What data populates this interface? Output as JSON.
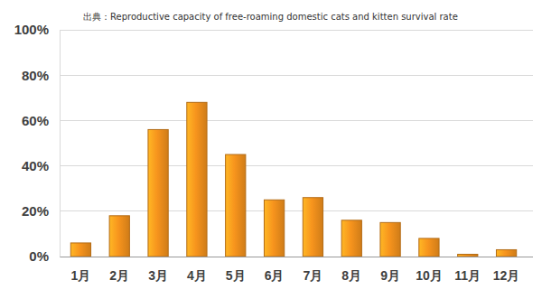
{
  "chart_data": {
    "type": "bar",
    "title": "出典：Reproductive capacity of free-roaming domestic cats and kitten survival rate",
    "categories": [
      "1月",
      "2月",
      "3月",
      "4月",
      "5月",
      "6月",
      "7月",
      "8月",
      "9月",
      "10月",
      "11月",
      "12月"
    ],
    "values": [
      6,
      18,
      56,
      68,
      45,
      25,
      26,
      16,
      15,
      8,
      1,
      3
    ],
    "color": "#f7941d",
    "ylim": [
      0,
      100
    ],
    "yticks": [
      {
        "value": 0,
        "label": "0%"
      },
      {
        "value": 20,
        "label": "20%"
      },
      {
        "value": 40,
        "label": "40%"
      },
      {
        "value": 60,
        "label": "60%"
      },
      {
        "value": 80,
        "label": "80%"
      },
      {
        "value": 100,
        "label": "100%"
      }
    ],
    "grid": true
  }
}
